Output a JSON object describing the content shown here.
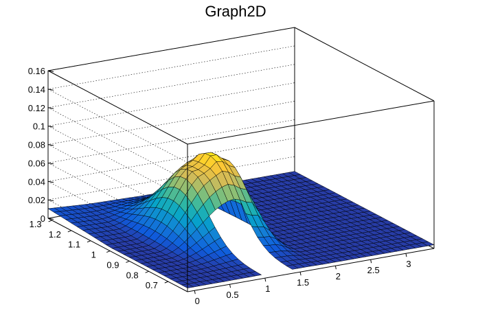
{
  "chart_data": {
    "type": "surface",
    "title": "Graph2D",
    "xlabel": "",
    "ylabel": "",
    "zlabel": "",
    "xlim": [
      -0.1,
      3.4
    ],
    "ylim": [
      0.6,
      1.32
    ],
    "zlim": [
      0,
      0.16
    ],
    "x_ticks": [
      0,
      0.5,
      1,
      1.5,
      2,
      2.5,
      3
    ],
    "x_tick_labels": [
      "0",
      "0.5",
      "1",
      "1.5",
      "2",
      "2.5",
      "3"
    ],
    "y_ticks": [
      0.7,
      0.8,
      0.9,
      1.0,
      1.1,
      1.2,
      1.3
    ],
    "y_tick_labels": [
      "0.7",
      "0.8",
      "0.9",
      "1",
      "1.1",
      "1.2",
      "1.3"
    ],
    "z_ticks": [
      0,
      0.02,
      0.04,
      0.06,
      0.08,
      0.1,
      0.12,
      0.14,
      0.16
    ],
    "z_tick_labels": [
      "0",
      "0.02",
      "0.04",
      "0.06",
      "0.08",
      "0.1",
      "0.12",
      "0.14",
      "0.16"
    ],
    "grid": true,
    "palette": [
      "#352a87",
      "#0f5cdd",
      "#1481d6",
      "#06a4ca",
      "#2eb7a4",
      "#87bf77",
      "#d1bb59",
      "#fec832",
      "#f9fb0e"
    ],
    "surface": {
      "x_range": [
        -0.1,
        3.4
      ],
      "y_range": [
        0.6,
        1.32
      ],
      "nx": 40,
      "ny": 24,
      "peak": {
        "x": 1.3,
        "y": 1.0,
        "z": 0.086
      },
      "ridge_x_range": [
        0.3,
        1.3
      ],
      "hole_x_range": [
        0.95,
        1.35
      ],
      "hole_y_range": [
        0.6,
        0.86
      ],
      "shoulder_x_range": [
        1.3,
        1.85
      ]
    }
  }
}
